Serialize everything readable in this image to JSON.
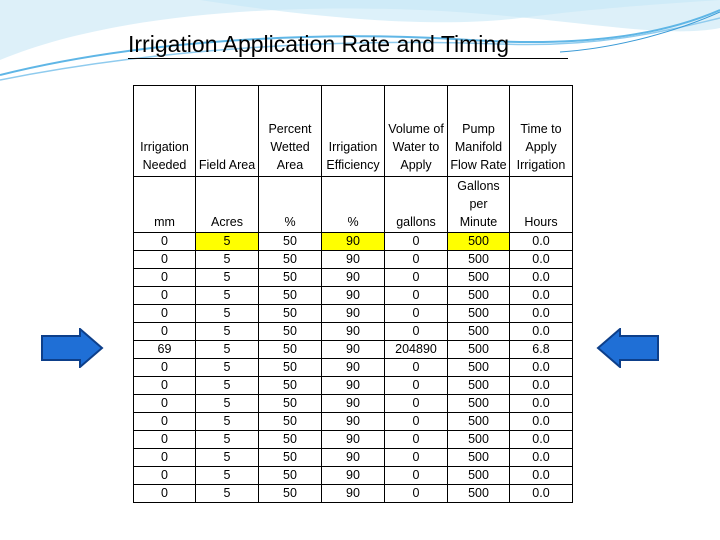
{
  "title": "Irrigation Application Rate and Timing",
  "colors": {
    "highlight": "#ffff00",
    "arrow_fill": "#1f6fd6",
    "arrow_stroke": "#0d3f8a",
    "swoosh": "#5fb6e6"
  },
  "icons": {
    "left": "right-arrow-icon",
    "right": "left-arrow-icon"
  },
  "table": {
    "headers": [
      [
        "Irrigation",
        "Needed"
      ],
      [
        "Field Area"
      ],
      [
        "Percent",
        "Wetted",
        "Area"
      ],
      [
        "Irrigation",
        "Efficiency"
      ],
      [
        "Volume of",
        "Water to",
        "Apply"
      ],
      [
        "Pump",
        "Manifold",
        "Flow Rate"
      ],
      [
        "Time to",
        "Apply",
        "Irrigation"
      ]
    ],
    "units": [
      [
        "mm"
      ],
      [
        "Acres"
      ],
      [
        "%"
      ],
      [
        "%"
      ],
      [
        "gallons"
      ],
      [
        "Gallons",
        "per",
        "Minute"
      ],
      [
        "Hours"
      ]
    ],
    "highlighted_row": 0,
    "highlighted_columns": [
      1,
      3,
      5
    ],
    "rows": [
      [
        "0",
        "5",
        "50",
        "90",
        "0",
        "500",
        "0.0"
      ],
      [
        "0",
        "5",
        "50",
        "90",
        "0",
        "500",
        "0.0"
      ],
      [
        "0",
        "5",
        "50",
        "90",
        "0",
        "500",
        "0.0"
      ],
      [
        "0",
        "5",
        "50",
        "90",
        "0",
        "500",
        "0.0"
      ],
      [
        "0",
        "5",
        "50",
        "90",
        "0",
        "500",
        "0.0"
      ],
      [
        "0",
        "5",
        "50",
        "90",
        "0",
        "500",
        "0.0"
      ],
      [
        "69",
        "5",
        "50",
        "90",
        "204890",
        "500",
        "6.8"
      ],
      [
        "0",
        "5",
        "50",
        "90",
        "0",
        "500",
        "0.0"
      ],
      [
        "0",
        "5",
        "50",
        "90",
        "0",
        "500",
        "0.0"
      ],
      [
        "0",
        "5",
        "50",
        "90",
        "0",
        "500",
        "0.0"
      ],
      [
        "0",
        "5",
        "50",
        "90",
        "0",
        "500",
        "0.0"
      ],
      [
        "0",
        "5",
        "50",
        "90",
        "0",
        "500",
        "0.0"
      ],
      [
        "0",
        "5",
        "50",
        "90",
        "0",
        "500",
        "0.0"
      ],
      [
        "0",
        "5",
        "50",
        "90",
        "0",
        "500",
        "0.0"
      ],
      [
        "0",
        "5",
        "50",
        "90",
        "0",
        "500",
        "0.0"
      ]
    ]
  }
}
